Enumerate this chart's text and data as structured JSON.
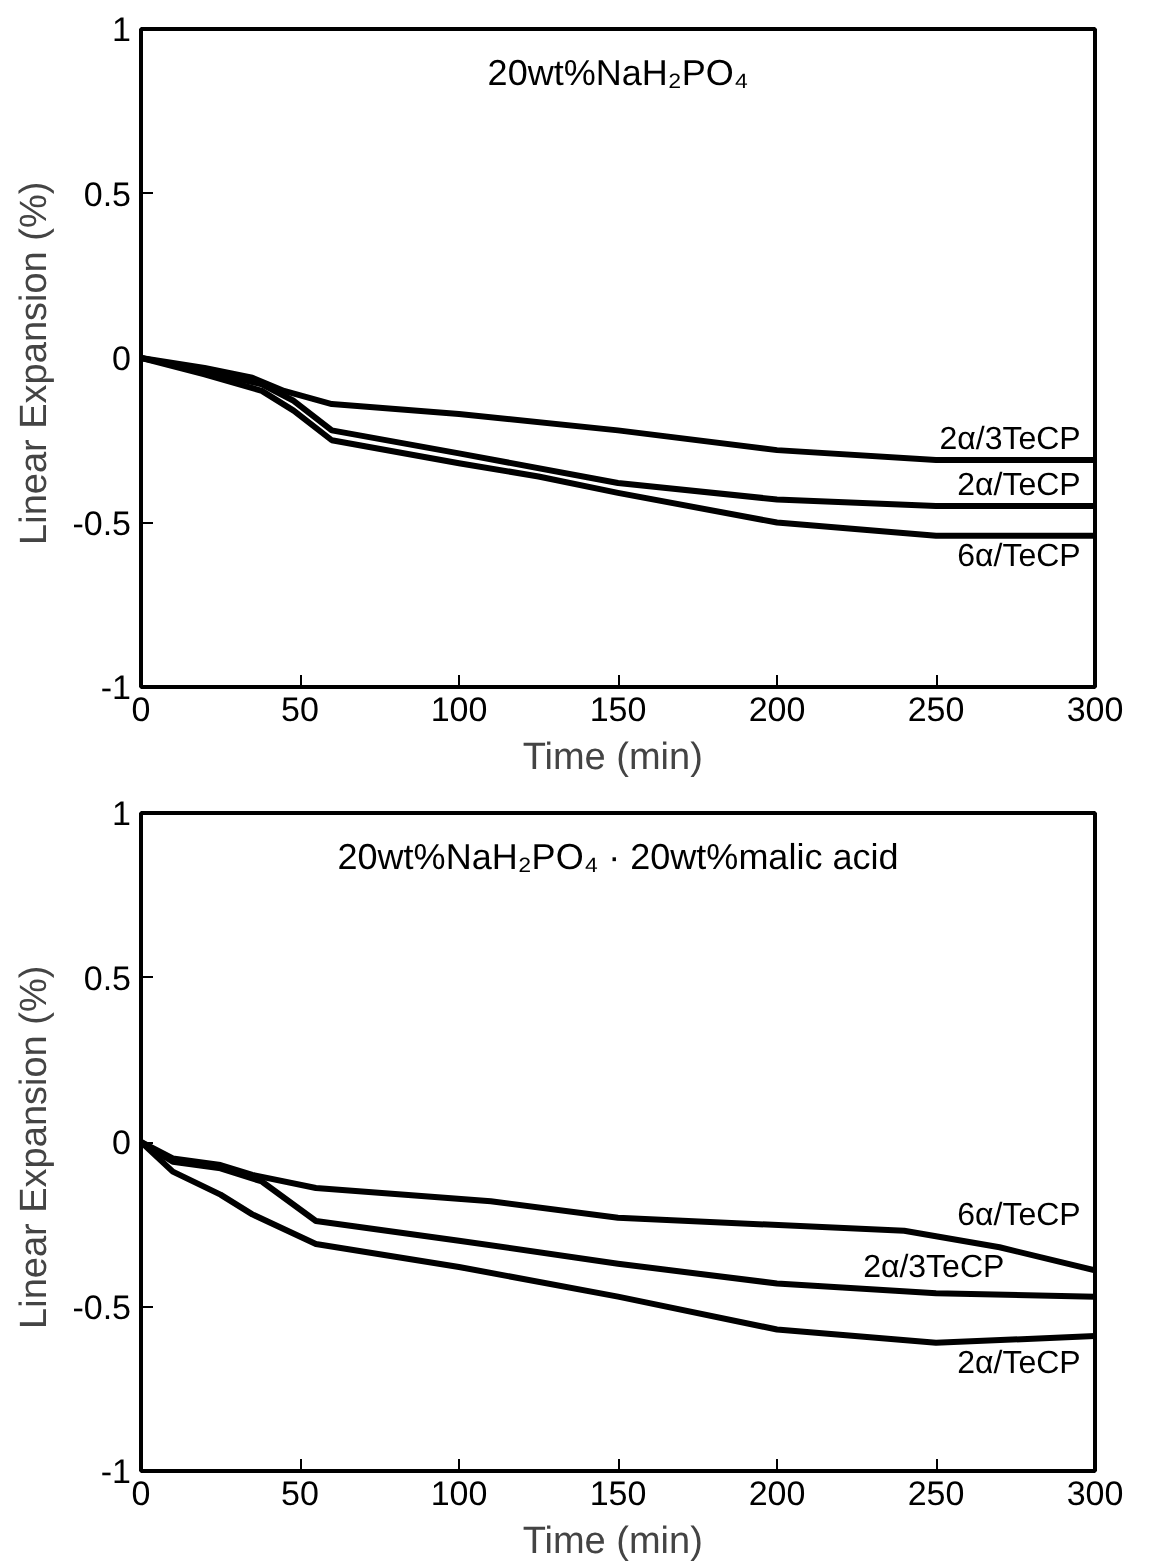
{
  "chart_data": [
    {
      "type": "line",
      "title": "20wt%NaH₂PO₄",
      "xlabel": "Time  (min)",
      "ylabel": "Linear Expansion  (%)",
      "xlim": [
        0,
        300
      ],
      "ylim": [
        -1,
        1
      ],
      "xticks": [
        0,
        50,
        100,
        150,
        200,
        250,
        300
      ],
      "yticks": [
        -1,
        -0.5,
        0,
        0.5,
        1
      ],
      "grid": false,
      "legend": false,
      "series": [
        {
          "name": "2α/3TeCP",
          "color": "#000000",
          "x": [
            0,
            20,
            35,
            45,
            60,
            100,
            150,
            200,
            250,
            300
          ],
          "values": [
            0,
            -0.03,
            -0.06,
            -0.1,
            -0.14,
            -0.17,
            -0.22,
            -0.28,
            -0.31,
            -0.31
          ]
        },
        {
          "name": "2α/TeCP",
          "color": "#000000",
          "x": [
            0,
            20,
            38,
            48,
            60,
            100,
            150,
            200,
            250,
            300
          ],
          "values": [
            0,
            -0.04,
            -0.08,
            -0.13,
            -0.22,
            -0.29,
            -0.38,
            -0.43,
            -0.45,
            -0.45
          ]
        },
        {
          "name": "6α/TeCP",
          "color": "#000000",
          "x": [
            0,
            20,
            38,
            48,
            60,
            100,
            125,
            150,
            200,
            250,
            300
          ],
          "values": [
            0,
            -0.05,
            -0.1,
            -0.16,
            -0.25,
            -0.32,
            -0.36,
            -0.41,
            -0.5,
            -0.54,
            -0.54
          ]
        }
      ]
    },
    {
      "type": "line",
      "title": "20wt%NaH₂PO₄ · 20wt%malic acid",
      "xlabel": "Time  (min)",
      "ylabel": "Linear Expansion  (%)",
      "xlim": [
        0,
        300
      ],
      "ylim": [
        -1,
        1
      ],
      "xticks": [
        0,
        50,
        100,
        150,
        200,
        250,
        300
      ],
      "yticks": [
        -1,
        -0.5,
        0,
        0.5,
        1
      ],
      "grid": false,
      "legend": false,
      "series": [
        {
          "name": "6α/TeCP",
          "color": "#000000",
          "x": [
            0,
            10,
            25,
            35,
            55,
            110,
            150,
            240,
            270,
            300
          ],
          "values": [
            0,
            -0.05,
            -0.07,
            -0.1,
            -0.14,
            -0.18,
            -0.23,
            -0.27,
            -0.32,
            -0.39
          ]
        },
        {
          "name": "2α/3TeCP",
          "color": "#000000",
          "x": [
            0,
            10,
            25,
            38,
            55,
            100,
            150,
            200,
            250,
            300
          ],
          "values": [
            0,
            -0.06,
            -0.08,
            -0.12,
            -0.24,
            -0.3,
            -0.37,
            -0.43,
            -0.46,
            -0.47
          ]
        },
        {
          "name": "2α/TeCP",
          "color": "#000000",
          "x": [
            0,
            10,
            25,
            35,
            55,
            100,
            150,
            200,
            250,
            300
          ],
          "values": [
            0,
            -0.09,
            -0.16,
            -0.22,
            -0.31,
            -0.38,
            -0.47,
            -0.57,
            -0.61,
            -0.59
          ]
        }
      ]
    }
  ]
}
